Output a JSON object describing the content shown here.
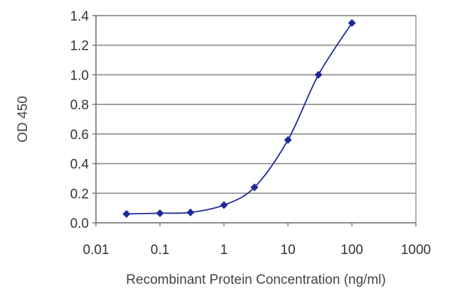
{
  "chart_data": {
    "type": "line",
    "xlabel": "Recombinant Protein Concentration (ng/ml)",
    "ylabel": "OD 450",
    "x_scale": "log",
    "xlim": [
      0.01,
      1000
    ],
    "ylim": [
      0.0,
      1.4
    ],
    "x_ticks": [
      "0.01",
      "0.1",
      "1",
      "10",
      "100",
      "1000"
    ],
    "y_ticks": [
      "0.0",
      "0.2",
      "0.4",
      "0.6",
      "0.8",
      "1.0",
      "1.2",
      "1.4"
    ],
    "grid": "horizontal",
    "series": [
      {
        "color": "#1f2a99",
        "marker": "diamond",
        "x": [
          0.03,
          0.1,
          0.3,
          1,
          3,
          10,
          30,
          100
        ],
        "y": [
          0.06,
          0.065,
          0.07,
          0.12,
          0.24,
          0.56,
          1.0,
          1.35
        ]
      }
    ]
  }
}
